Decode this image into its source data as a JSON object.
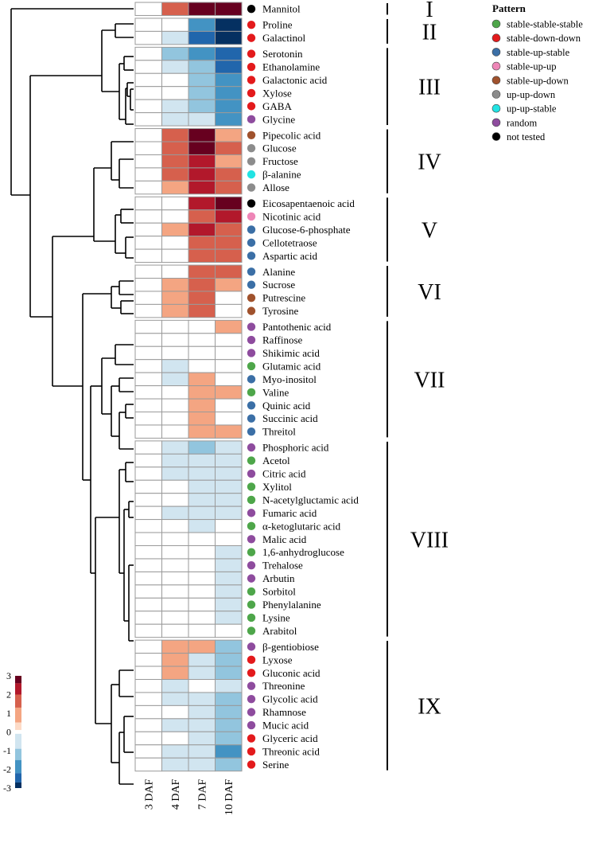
{
  "chart_data": {
    "type": "heatmap",
    "columns": [
      "3 DAF",
      "4 DAF",
      "7 DAF",
      "10 DAF"
    ],
    "rows": [
      {
        "name": "Mannitol",
        "pattern": "not tested",
        "values": [
          0,
          1.8,
          3,
          3
        ]
      },
      {
        "name": "Proline",
        "pattern": "stable-down-down",
        "values": [
          0,
          0,
          -2,
          -3
        ]
      },
      {
        "name": "Galactinol",
        "pattern": "stable-down-down",
        "values": [
          0,
          -0.6,
          -2.5,
          -3
        ]
      },
      {
        "name": "Serotonin",
        "pattern": "stable-down-down",
        "values": [
          0,
          -1.2,
          -1.6,
          -2.4
        ]
      },
      {
        "name": "Ethanolamine",
        "pattern": "stable-down-down",
        "values": [
          0,
          -0.6,
          -1.3,
          -2.4
        ]
      },
      {
        "name": "Galactonic acid",
        "pattern": "stable-down-down",
        "values": [
          0,
          0,
          -1.3,
          -2
        ]
      },
      {
        "name": "Xylose",
        "pattern": "stable-down-down",
        "values": [
          0,
          0,
          -1.3,
          -2
        ]
      },
      {
        "name": "GABA",
        "pattern": "stable-down-down",
        "values": [
          0,
          -0.6,
          -1.3,
          -2
        ]
      },
      {
        "name": "Glycine",
        "pattern": "random",
        "values": [
          0,
          -0.6,
          -0.6,
          -2
        ]
      },
      {
        "name": "Pipecolic acid",
        "pattern": "stable-up-down",
        "values": [
          0,
          1.6,
          3,
          0.8
        ]
      },
      {
        "name": "Glucose",
        "pattern": "up-up-down",
        "values": [
          0,
          1.6,
          3,
          1.6
        ]
      },
      {
        "name": "Fructose",
        "pattern": "up-up-down",
        "values": [
          0,
          1.6,
          2.4,
          0.8
        ]
      },
      {
        "name": "β-alanine",
        "pattern": "up-up-stable",
        "values": [
          0,
          1.6,
          2.4,
          1.6
        ]
      },
      {
        "name": "Allose",
        "pattern": "up-up-down",
        "values": [
          0,
          0.8,
          2.4,
          1.6
        ]
      },
      {
        "name": "Eicosapentaenoic acid",
        "pattern": "not tested",
        "values": [
          0,
          0,
          2.4,
          3
        ]
      },
      {
        "name": "Nicotinic acid",
        "pattern": "stable-up-up",
        "values": [
          0,
          0,
          1.6,
          2.4
        ]
      },
      {
        "name": "Glucose-6-phosphate",
        "pattern": "stable-up-stable",
        "values": [
          0,
          0.8,
          2.4,
          1.6
        ]
      },
      {
        "name": "Cellotetraose",
        "pattern": "stable-up-stable",
        "values": [
          0,
          0,
          1.6,
          1.6
        ]
      },
      {
        "name": "Aspartic acid",
        "pattern": "stable-up-stable",
        "values": [
          0,
          0,
          1.6,
          1.6
        ]
      },
      {
        "name": "Alanine",
        "pattern": "stable-up-stable",
        "values": [
          0,
          0,
          1.6,
          1.6
        ]
      },
      {
        "name": "Sucrose",
        "pattern": "stable-up-stable",
        "values": [
          0,
          0.8,
          1.6,
          0.8
        ]
      },
      {
        "name": "Putrescine",
        "pattern": "stable-up-down",
        "values": [
          0,
          0.8,
          1.6,
          0
        ]
      },
      {
        "name": "Tyrosine",
        "pattern": "stable-up-down",
        "values": [
          0,
          0.8,
          1.6,
          0
        ]
      },
      {
        "name": "Pantothenic acid",
        "pattern": "random",
        "values": [
          0,
          0,
          0,
          0.8
        ]
      },
      {
        "name": "Raffinose",
        "pattern": "random",
        "values": [
          0,
          0,
          0,
          0
        ]
      },
      {
        "name": "Shikimic acid",
        "pattern": "random",
        "values": [
          0,
          0,
          0,
          0
        ]
      },
      {
        "name": "Glutamic acid",
        "pattern": "stable-stable-stable",
        "values": [
          0,
          -0.6,
          0,
          0
        ]
      },
      {
        "name": "Myo-inositol",
        "pattern": "stable-up-stable",
        "values": [
          0,
          -0.6,
          0.8,
          0
        ]
      },
      {
        "name": "Valine",
        "pattern": "stable-stable-stable",
        "values": [
          0,
          0,
          0.8,
          0.8
        ]
      },
      {
        "name": "Quinic acid",
        "pattern": "stable-up-stable",
        "values": [
          0,
          0,
          0.8,
          0
        ]
      },
      {
        "name": "Succinic acid",
        "pattern": "stable-up-stable",
        "values": [
          0,
          0,
          0.8,
          0
        ]
      },
      {
        "name": "Threitol",
        "pattern": "stable-up-stable",
        "values": [
          0,
          0,
          0.8,
          0.8
        ]
      },
      {
        "name": "Phosphoric acid",
        "pattern": "random",
        "values": [
          0,
          -0.6,
          -1.2,
          -0.6
        ]
      },
      {
        "name": "Acetol",
        "pattern": "stable-stable-stable",
        "values": [
          0,
          -0.6,
          -0.6,
          -0.6
        ]
      },
      {
        "name": "Citric acid",
        "pattern": "random",
        "values": [
          0,
          -0.6,
          -0.6,
          -0.6
        ]
      },
      {
        "name": "Xylitol",
        "pattern": "stable-stable-stable",
        "values": [
          0,
          0,
          -0.6,
          -0.6
        ]
      },
      {
        "name": "N-acetylgluctamic acid",
        "pattern": "stable-stable-stable",
        "values": [
          0,
          0,
          -0.6,
          -0.6
        ]
      },
      {
        "name": "Fumaric acid",
        "pattern": "random",
        "values": [
          0,
          -0.6,
          -0.6,
          -0.6
        ]
      },
      {
        "name": "α-ketoglutaric acid",
        "pattern": "stable-stable-stable",
        "values": [
          0,
          0,
          -0.6,
          0
        ]
      },
      {
        "name": "Malic acid",
        "pattern": "random",
        "values": [
          0,
          0,
          0,
          0
        ]
      },
      {
        "name": "1,6-anhydroglucose",
        "pattern": "stable-stable-stable",
        "values": [
          0,
          0,
          0,
          -0.6
        ]
      },
      {
        "name": "Trehalose",
        "pattern": "random",
        "values": [
          0,
          0,
          0,
          -0.6
        ]
      },
      {
        "name": "Arbutin",
        "pattern": "random",
        "values": [
          0,
          0,
          0,
          -0.6
        ]
      },
      {
        "name": "Sorbitol",
        "pattern": "stable-stable-stable",
        "values": [
          0,
          0,
          0,
          -0.6
        ]
      },
      {
        "name": "Phenylalanine",
        "pattern": "stable-stable-stable",
        "values": [
          0,
          0,
          0,
          -0.6
        ]
      },
      {
        "name": "Lysine",
        "pattern": "stable-stable-stable",
        "values": [
          0,
          0,
          0,
          -0.6
        ]
      },
      {
        "name": "Arabitol",
        "pattern": "stable-stable-stable",
        "values": [
          0,
          0,
          0,
          0
        ]
      },
      {
        "name": "β-gentiobiose",
        "pattern": "random",
        "values": [
          0,
          0.8,
          0.8,
          -1.2
        ]
      },
      {
        "name": "Lyxose",
        "pattern": "stable-down-down",
        "values": [
          0,
          0.8,
          -0.6,
          -1.2
        ]
      },
      {
        "name": "Gluconic acid",
        "pattern": "stable-down-down",
        "values": [
          0,
          0.8,
          -0.6,
          -1.2
        ]
      },
      {
        "name": "Threonine",
        "pattern": "random",
        "values": [
          0,
          -0.6,
          0,
          -0.6
        ]
      },
      {
        "name": "Glycolic acid",
        "pattern": "random",
        "values": [
          0,
          -0.6,
          -0.6,
          -1.2
        ]
      },
      {
        "name": "Rhamnose",
        "pattern": "random",
        "values": [
          0,
          0,
          -0.6,
          -1.2
        ]
      },
      {
        "name": "Mucic acid",
        "pattern": "random",
        "values": [
          0,
          -0.6,
          -0.6,
          -1.2
        ]
      },
      {
        "name": "Glyceric acid",
        "pattern": "stable-down-down",
        "values": [
          0,
          0,
          -0.6,
          -1.2
        ]
      },
      {
        "name": "Threonic acid",
        "pattern": "stable-down-down",
        "values": [
          0,
          -0.6,
          -0.6,
          -2
        ]
      },
      {
        "name": "Serine",
        "pattern": "stable-down-down",
        "values": [
          0,
          -0.6,
          -0.6,
          -1.2
        ]
      }
    ],
    "clusters": [
      {
        "label": "I",
        "first_row": 0,
        "last_row": 0
      },
      {
        "label": "II",
        "first_row": 1,
        "last_row": 2
      },
      {
        "label": "III",
        "first_row": 3,
        "last_row": 8
      },
      {
        "label": "IV",
        "first_row": 9,
        "last_row": 13
      },
      {
        "label": "V",
        "first_row": 14,
        "last_row": 18
      },
      {
        "label": "VI",
        "first_row": 19,
        "last_row": 22
      },
      {
        "label": "VII",
        "first_row": 23,
        "last_row": 31
      },
      {
        "label": "VIII",
        "first_row": 32,
        "last_row": 46
      },
      {
        "label": "IX",
        "first_row": 47,
        "last_row": 56
      }
    ],
    "pattern_legend": {
      "title": "Pattern",
      "items": [
        {
          "label": "stable-stable-stable",
          "color": "#4ea64a"
        },
        {
          "label": "stable-down-down",
          "color": "#e31a1c"
        },
        {
          "label": "stable-up-stable",
          "color": "#3b6fa6"
        },
        {
          "label": "stable-up-up",
          "color": "#ee86b7"
        },
        {
          "label": "stable-up-down",
          "color": "#a0522d"
        },
        {
          "label": "up-up-down",
          "color": "#8c8c8c"
        },
        {
          "label": "up-up-stable",
          "color": "#22e3e3"
        },
        {
          "label": "random",
          "color": "#8e4c9e"
        },
        {
          "label": "not tested",
          "color": "#000000"
        }
      ]
    },
    "color_scale": {
      "range": [
        -3,
        3
      ],
      "tick_labels": [
        "3",
        "2",
        "1",
        "0",
        "-1",
        "-2",
        "-3"
      ],
      "steps": [
        {
          "from": 2.6,
          "to": 3.0,
          "color": "#67001f"
        },
        {
          "from": 2.0,
          "to": 2.6,
          "color": "#b2182b"
        },
        {
          "from": 1.3,
          "to": 2.0,
          "color": "#d6604d"
        },
        {
          "from": 0.5,
          "to": 1.3,
          "color": "#f4a582"
        },
        {
          "from": 0.1,
          "to": 0.5,
          "color": "#fddbc7"
        },
        {
          "from": -0.1,
          "to": 0.1,
          "color": "#ffffff"
        },
        {
          "from": -0.9,
          "to": -0.1,
          "color": "#d1e5f0"
        },
        {
          "from": -1.5,
          "to": -0.9,
          "color": "#92c5de"
        },
        {
          "from": -2.2,
          "to": -1.5,
          "color": "#4393c3"
        },
        {
          "from": -2.7,
          "to": -2.2,
          "color": "#2166ac"
        },
        {
          "from": -3.0,
          "to": -2.7,
          "color": "#053061"
        }
      ]
    }
  }
}
